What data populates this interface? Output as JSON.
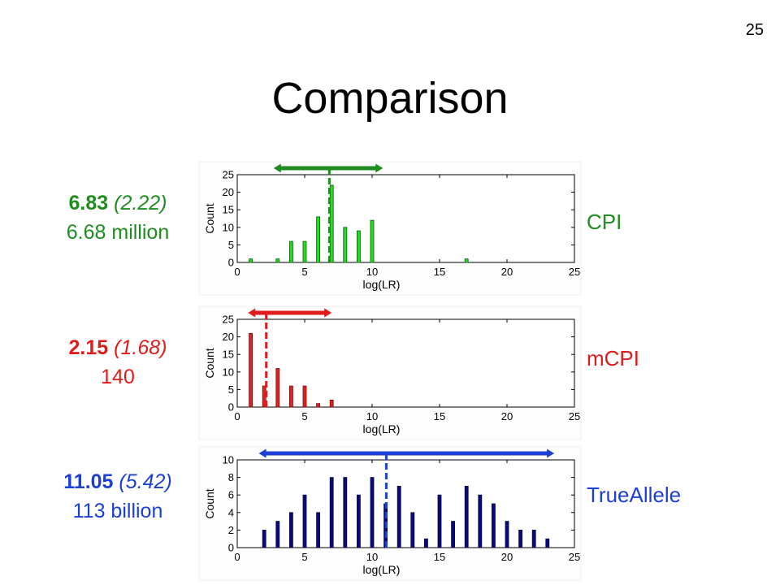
{
  "page_number": "25",
  "title": "Comparison",
  "rows": [
    {
      "mean": "6.83",
      "sd": "(2.22)",
      "lr_text": "6.68 million",
      "method": "CPI",
      "color": "#1e8c1e",
      "bar_color": "#22dd22",
      "bar_edge": "#0a5a0a"
    },
    {
      "mean": "2.15",
      "sd": "(1.68)",
      "lr_text": "140",
      "method": "mCPI",
      "color": "#e01b1b",
      "bar_color": "#dd2222",
      "bar_edge": "#7a0a0a"
    },
    {
      "mean": "11.05",
      "sd": "(5.42)",
      "lr_text": "113 billion",
      "method": "TrueAllele",
      "color": "#1c3fd6",
      "bar_color": "#0a0a80",
      "bar_edge": "#050540"
    }
  ],
  "chart_data": [
    {
      "type": "bar",
      "xlabel": "log(LR)",
      "ylabel": "Count",
      "xlim": [
        0,
        25
      ],
      "ylim": [
        0,
        25
      ],
      "xticks": [
        0,
        5,
        10,
        15,
        20,
        25
      ],
      "yticks": [
        0,
        5,
        10,
        15,
        20,
        25
      ],
      "x": [
        1,
        3,
        4,
        5,
        6,
        7,
        8,
        9,
        10,
        17
      ],
      "values": [
        1,
        1,
        6,
        6,
        13,
        22,
        10,
        9,
        12,
        1
      ],
      "mean_line": 6.83,
      "range_arrow": [
        2.7,
        10.8
      ]
    },
    {
      "type": "bar",
      "xlabel": "log(LR)",
      "ylabel": "Count",
      "xlim": [
        0,
        25
      ],
      "ylim": [
        0,
        25
      ],
      "xticks": [
        0,
        5,
        10,
        15,
        20,
        25
      ],
      "yticks": [
        0,
        5,
        10,
        15,
        20,
        25
      ],
      "x": [
        1,
        2,
        3,
        4,
        5,
        6,
        7
      ],
      "values": [
        21,
        6,
        11,
        6,
        6,
        1,
        2
      ],
      "mean_line": 2.15,
      "range_arrow": [
        0.8,
        7.0
      ]
    },
    {
      "type": "bar",
      "xlabel": "log(LR)",
      "ylabel": "Count",
      "xlim": [
        0,
        25
      ],
      "ylim": [
        0,
        10
      ],
      "xticks": [
        0,
        5,
        10,
        15,
        20,
        25
      ],
      "yticks": [
        0,
        2,
        4,
        6,
        8,
        10
      ],
      "x": [
        2,
        3,
        4,
        5,
        6,
        7,
        8,
        9,
        10,
        11,
        12,
        13,
        14,
        15,
        16,
        17,
        18,
        19,
        20,
        21,
        22,
        23
      ],
      "values": [
        2,
        3,
        4,
        6,
        4,
        8,
        8,
        6,
        8,
        5,
        7,
        4,
        1,
        6,
        3,
        7,
        6,
        5,
        3,
        2,
        2,
        1
      ],
      "mean_line": 11.05,
      "range_arrow": [
        1.6,
        23.5
      ]
    }
  ]
}
